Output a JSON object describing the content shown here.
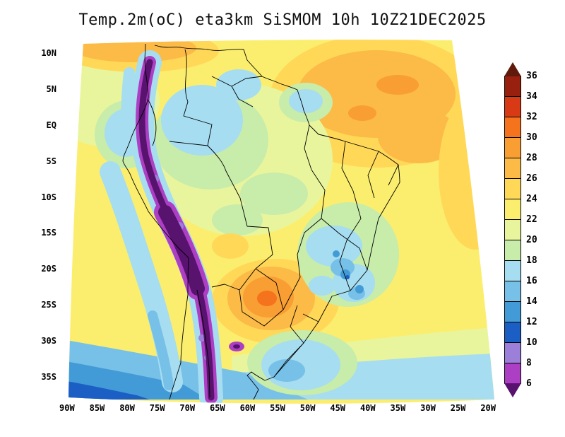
{
  "title": "Temp.2m(oC) eta3km SiSMOM 10h 10Z21DEC2025",
  "axes": {
    "lat_ticks": [
      "10N",
      "5N",
      "EQ",
      "5S",
      "10S",
      "15S",
      "20S",
      "25S",
      "30S",
      "35S"
    ],
    "lon_ticks": [
      "90W",
      "85W",
      "80W",
      "75W",
      "70W",
      "65W",
      "60W",
      "55W",
      "50W",
      "45W",
      "40W",
      "35W",
      "30W",
      "25W",
      "20W"
    ]
  },
  "legend": {
    "labels": [
      "36",
      "34",
      "32",
      "30",
      "28",
      "26",
      "24",
      "22",
      "20",
      "18",
      "16",
      "14",
      "12",
      "10",
      "8",
      "6"
    ],
    "colors": [
      "#5f1a0b",
      "#97200e",
      "#d93a16",
      "#f4731c",
      "#f99e33",
      "#fcba47",
      "#ffd858",
      "#fbee6e",
      "#e9f59c",
      "#c8ecaa",
      "#a6ddf0",
      "#77c0e8",
      "#429bd6",
      "#1b5fc4",
      "#9b7fd9",
      "#ad3fc4",
      "#57136e"
    ]
  },
  "chart_data": {
    "type": "heatmap",
    "title": "Temp.2m(oC) eta3km SiSMOM 10h 10Z21DEC2025",
    "variable": "Temp.2m (oC)",
    "model": "eta3km SiSMOM",
    "forecast_hour": "10h",
    "valid_time": "10Z21DEC2025",
    "region": "South America",
    "x_ticks_lon": [
      "90W",
      "85W",
      "80W",
      "75W",
      "70W",
      "65W",
      "60W",
      "55W",
      "50W",
      "45W",
      "40W",
      "35W",
      "30W",
      "25W",
      "20W"
    ],
    "y_ticks_lat": [
      "10N",
      "5N",
      "EQ",
      "5S",
      "10S",
      "15S",
      "20S",
      "25S",
      "30S",
      "35S"
    ],
    "color_levels_c": [
      36,
      34,
      32,
      30,
      28,
      26,
      24,
      22,
      20,
      18,
      16,
      14,
      12,
      10,
      8,
      6
    ],
    "legend_position": "right",
    "grid": false,
    "features": [
      {
        "area": "Andes cordillera (7N-38S along ~70-78W)",
        "temp_c": "below 6-8 (dark purple/magenta ridge)"
      },
      {
        "area": "NW Amazon / S Venezuela",
        "temp_c": "16-20 (light blue and green patches)"
      },
      {
        "area": "NE Brazil and adjacent tropical Atlantic",
        "temp_c": "26-28 (orange blob)"
      },
      {
        "area": "Top-left Caribbean edge",
        "temp_c": "26-28 (orange band)"
      },
      {
        "area": "Paraguay / Gran Chaco",
        "temp_c": "28-32 (orange core, hottest inland spot)"
      },
      {
        "area": "Tropical/central Atlantic ocean",
        "temp_c": "22-26 (broad yellow field)"
      },
      {
        "area": "SE Brazil highlands",
        "temp_c": "12-18 (green with blue speckles)"
      },
      {
        "area": "S Brazil / Uruguay",
        "temp_c": "16-20 (light blue/green)"
      },
      {
        "area": "Pacific coastal strip west of Andes",
        "temp_c": "14-18 (light blue band)"
      },
      {
        "area": "South Atlantic / far south of domain",
        "temp_c": "10-18 (blue bands, darkest at bottom-left corner)"
      }
    ]
  }
}
